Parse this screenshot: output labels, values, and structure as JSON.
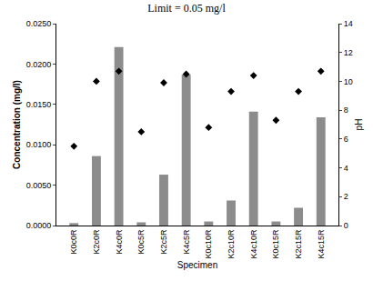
{
  "chart_data": {
    "type": "bar",
    "title": "Limit = 0.05 mg/l",
    "x_label": "Specimen",
    "y_label": "Concentration (mg/l)",
    "y2_label": "pH",
    "categories": [
      "K0c0R",
      "K2c0R",
      "K4c0R",
      "K0c5R",
      "K2c5R",
      "K4c5R",
      "K0c10R",
      "K2c10R",
      "K4c10R",
      "K0c15R",
      "K2c15R",
      "K4c15R"
    ],
    "series": [
      {
        "type": "bar",
        "color": "#8c8c8c",
        "values": [
          0.0003,
          0.0086,
          0.0221,
          0.0004,
          0.0063,
          0.0187,
          0.0005,
          0.0031,
          0.0141,
          0.0005,
          0.0022,
          0.0134
        ]
      },
      {
        "type": "scatter",
        "axis": "y2",
        "color": "#000000",
        "marker": "diamond",
        "values": [
          5.5,
          10.0,
          10.7,
          6.5,
          9.9,
          10.5,
          6.8,
          9.3,
          10.4,
          7.3,
          9.3,
          10.7
        ]
      }
    ],
    "ylim": [
      0,
      0.025
    ],
    "yticks": [
      {
        "value": 0,
        "label": "0.0000"
      },
      {
        "value": 0.005,
        "label": "0.0050"
      },
      {
        "value": 0.01,
        "label": "0.0100"
      },
      {
        "value": 0.015,
        "label": "0.0150"
      },
      {
        "value": 0.02,
        "label": "0.0200"
      },
      {
        "value": 0.025,
        "label": "0.0250"
      }
    ],
    "y2lim": [
      0,
      14
    ],
    "y2ticks": [
      0,
      2,
      4,
      6,
      8,
      10,
      12,
      14
    ],
    "grid": false
  }
}
